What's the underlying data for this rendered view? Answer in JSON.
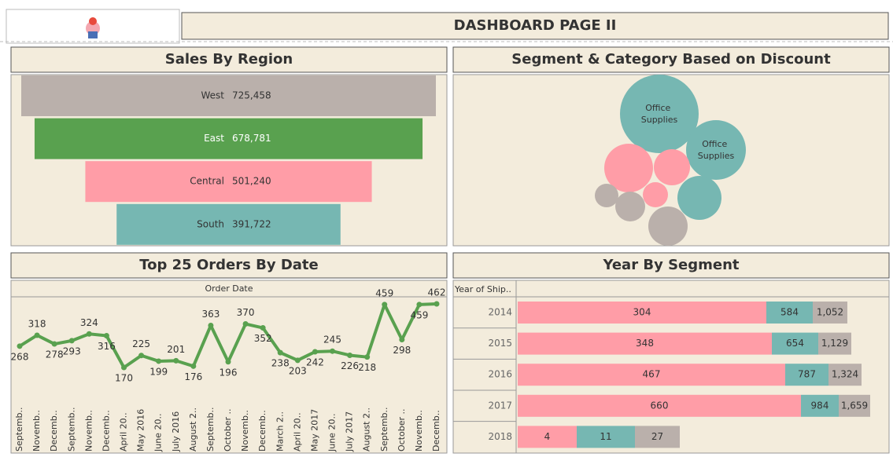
{
  "header": {
    "title": "DASHBOARD PAGE II"
  },
  "chart_data": [
    {
      "type": "funnel",
      "title": "Sales By Region",
      "categories": [
        "West",
        "East",
        "Central",
        "South"
      ],
      "values": [
        725458,
        678781,
        501240,
        391722
      ],
      "value_labels": [
        "725,458",
        "678,781",
        "501,240",
        "391,722"
      ],
      "colors": [
        "#bab0ab",
        "#59a14f",
        "#ff9da7",
        "#76b7b2"
      ]
    },
    {
      "type": "bubble",
      "title": "Segment & Category Based on Discount",
      "values": [
        2500,
        1444,
        961,
        529,
        256,
        225,
        361,
        784,
        625
      ],
      "colors": [
        "#76b7b2",
        "#76b7b2",
        "#ff9da7",
        "#ff9da7",
        "#ff9da7",
        "#bab0ab",
        "#bab0ab",
        "#76b7b2",
        "#bab0ab"
      ],
      "labels": [
        "Office Supplies",
        "Office Supplies",
        null,
        null,
        null,
        null,
        null,
        null,
        null
      ]
    },
    {
      "type": "line",
      "title": "Top 25 Orders By Date",
      "x_label": "Order Date",
      "categories": [
        "Septemb..",
        "Novemb..",
        "Decemb..",
        "Septemb..",
        "Novemb..",
        "Decemb..",
        "April 20..",
        "May 2016",
        "June 20..",
        "July 2016",
        "August 2..",
        "Septemb..",
        "October ..",
        "Novemb..",
        "Decemb..",
        "March 2..",
        "April 20..",
        "May 2017",
        "June 20..",
        "July 2017",
        "August 2..",
        "Septemb..",
        "October ..",
        "Novemb..",
        "Decemb.."
      ],
      "values": [
        268,
        318,
        278,
        293,
        324,
        316,
        170,
        225,
        199,
        201,
        176,
        363,
        196,
        370,
        352,
        238,
        203,
        242,
        245,
        226,
        218,
        459,
        298,
        459,
        462
      ],
      "color": "#59a14f"
    },
    {
      "type": "stacked-bar",
      "title": "Year By Segment",
      "row_header": "Year of Ship..",
      "categories": [
        "2014",
        "2015",
        "2016",
        "2017",
        "2018"
      ],
      "series": [
        {
          "color": "#ff9da7",
          "values": [
            304,
            348,
            467,
            660,
            4
          ],
          "bar_lengths": [
            316,
            323,
            340,
            360,
            75
          ]
        },
        {
          "color": "#76b7b2",
          "values": [
            584,
            654,
            787,
            984,
            11
          ],
          "bar_lengths": [
            59,
            59,
            55,
            48,
            74
          ]
        },
        {
          "color": "#bab0ab",
          "values": [
            1052,
            1129,
            1324,
            1659,
            27
          ],
          "value_labels": [
            "1,052",
            "1,129",
            "1,324",
            "1,659",
            "27"
          ],
          "bar_lengths": [
            44,
            42,
            42,
            40,
            57
          ]
        }
      ]
    }
  ]
}
